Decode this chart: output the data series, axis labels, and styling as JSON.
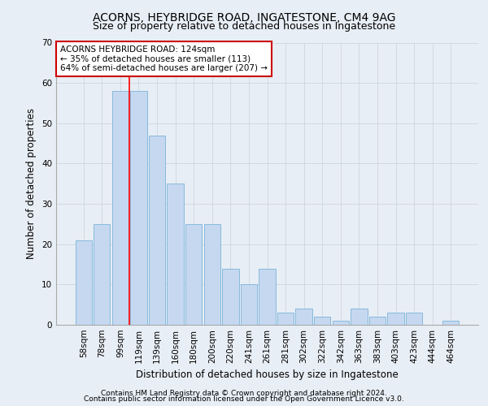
{
  "title1": "ACORNS, HEYBRIDGE ROAD, INGATESTONE, CM4 9AG",
  "title2": "Size of property relative to detached houses in Ingatestone",
  "xlabel": "Distribution of detached houses by size in Ingatestone",
  "ylabel": "Number of detached properties",
  "categories": [
    "58sqm",
    "78sqm",
    "99sqm",
    "119sqm",
    "139sqm",
    "160sqm",
    "180sqm",
    "200sqm",
    "220sqm",
    "241sqm",
    "261sqm",
    "281sqm",
    "302sqm",
    "322sqm",
    "342sqm",
    "363sqm",
    "383sqm",
    "403sqm",
    "423sqm",
    "444sqm",
    "464sqm"
  ],
  "values": [
    21,
    25,
    58,
    58,
    47,
    35,
    25,
    25,
    14,
    10,
    14,
    3,
    4,
    2,
    1,
    4,
    2,
    3,
    3,
    0,
    1
  ],
  "bar_color": "#c5d8f0",
  "bar_edge_color": "#7ab4d8",
  "red_line_x": 2.5,
  "annotation_text": "ACORNS HEYBRIDGE ROAD: 124sqm\n← 35% of detached houses are smaller (113)\n64% of semi-detached houses are larger (207) →",
  "annotation_box_color": "#ffffff",
  "annotation_box_edge": "#cc0000",
  "ylim": [
    0,
    70
  ],
  "yticks": [
    0,
    10,
    20,
    30,
    40,
    50,
    60,
    70
  ],
  "grid_color": "#cdd5e0",
  "background_color": "#e8eef5",
  "plot_background": "#e8eef5",
  "footer1": "Contains HM Land Registry data © Crown copyright and database right 2024.",
  "footer2": "Contains public sector information licensed under the Open Government Licence v3.0.",
  "title1_fontsize": 10,
  "title2_fontsize": 9,
  "xlabel_fontsize": 8.5,
  "ylabel_fontsize": 8.5,
  "tick_fontsize": 7.5,
  "annotation_fontsize": 7.5,
  "footer_fontsize": 6.5
}
